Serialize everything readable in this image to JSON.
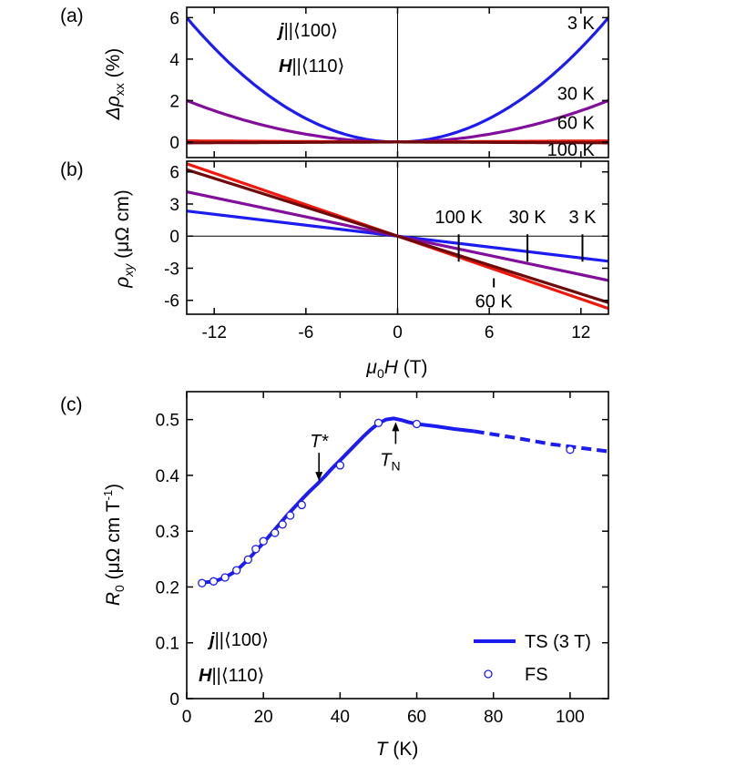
{
  "figure": {
    "panels": [
      {
        "id": "a",
        "label": "(a)"
      },
      {
        "id": "b",
        "label": "(b)"
      },
      {
        "id": "c",
        "label": "(c)"
      }
    ]
  },
  "annotations": {
    "a_j_symbol": "j",
    "a_j_rest": "||⟨100⟩",
    "a_h_symbol": "H",
    "a_h_rest": "||⟨110⟩",
    "c_j_symbol": "j",
    "c_j_rest": "||⟨100⟩",
    "c_h_symbol": "H",
    "c_h_rest": "||⟨110⟩",
    "t_star": "T*",
    "t_n_main": "T",
    "t_n_sub": "N"
  },
  "chart_data": [
    {
      "id": "a",
      "type": "line",
      "xlabel": "",
      "ylabel_main": "Δρ",
      "ylabel_sub": "xx",
      "ylabel_unit": " (%)",
      "xlim": [
        -13.8,
        13.8
      ],
      "ylim": [
        -0.75,
        6.5
      ],
      "xticks": [
        -12,
        -6,
        0,
        6,
        12
      ],
      "yticks": [
        0,
        2,
        4,
        6
      ],
      "ytick_labels": [
        "0",
        "2",
        "4",
        "6"
      ],
      "series": [
        {
          "name": "3 K",
          "color": "#1c1cf0",
          "model": "quadratic",
          "coef": 0.0315
        },
        {
          "name": "30 K",
          "color": "#820e9c",
          "model": "quadratic",
          "coef": 0.0105
        },
        {
          "name": "60 K",
          "color": "#e3170c",
          "model": "linear_abs",
          "coef": 0.004
        },
        {
          "name": "100 K",
          "color": "#6e0a0a",
          "model": "linear_abs",
          "coef": -0.003
        }
      ],
      "series_labels": [
        {
          "text": "3 K",
          "x": 12.9,
          "y": 5.75
        },
        {
          "text": "30 K",
          "x": 12.9,
          "y": 2.35
        },
        {
          "text": "60 K",
          "x": 12.9,
          "y": 0.95
        },
        {
          "text": "100 K",
          "x": 12.9,
          "y": -0.35
        }
      ]
    },
    {
      "id": "b",
      "type": "line",
      "xlabel_main": "μ",
      "xlabel_sub": "0",
      "xlabel_rest": "H",
      "xlabel_unit": " (T)",
      "ylabel_main": "ρ",
      "ylabel_sub": "xy",
      "ylabel_unit": " (μΩ cm)",
      "xlim": [
        -13.8,
        13.8
      ],
      "ylim": [
        -7.3,
        7.0
      ],
      "xticks": [
        -12,
        -6,
        0,
        6,
        12
      ],
      "xtick_labels": [
        "-12",
        "-6",
        "0",
        "6",
        "12"
      ],
      "yticks": [
        -6,
        -3,
        0,
        3,
        6
      ],
      "ytick_labels": [
        "-6",
        "-3",
        "0",
        "3",
        "6"
      ],
      "series": [
        {
          "name": "3 K",
          "color": "#1c1cf0",
          "slope": -0.17
        },
        {
          "name": "30 K",
          "color": "#820e9c",
          "slope": -0.3
        },
        {
          "name": "60 K",
          "color": "#f0180c",
          "slope": -0.49
        },
        {
          "name": "100 K",
          "color": "#6e0a0a",
          "slope": -0.45
        }
      ],
      "series_labels": [
        {
          "text": "100 K",
          "x": 4,
          "y": 1.2,
          "marker_x": 4
        },
        {
          "text": "30 K",
          "x": 8.5,
          "y": 1.2,
          "marker_x": 8.5
        },
        {
          "text": "3 K",
          "x": 12.1,
          "y": 1.2,
          "marker_x": 12.1
        },
        {
          "text": "60 K",
          "x": 6.3,
          "y": -5.3,
          "marker_x": 6.3
        }
      ]
    },
    {
      "id": "c",
      "type": "line",
      "xlabel_main": "T",
      "xlabel_unit": " (K)",
      "ylabel_main": "R",
      "ylabel_sub": "0",
      "ylabel_unit": " (μΩ cm T",
      "ylabel_sup": "-1",
      "ylabel_close": ")",
      "xlim": [
        0,
        110
      ],
      "ylim": [
        0,
        0.55
      ],
      "xticks": [
        0,
        20,
        40,
        60,
        80,
        100
      ],
      "xtick_labels": [
        "0",
        "20",
        "40",
        "60",
        "80",
        "100"
      ],
      "yticks": [
        0,
        0.1,
        0.2,
        0.3,
        0.4,
        0.5
      ],
      "ytick_labels": [
        "0",
        "0.1",
        "0.2",
        "0.3",
        "0.4",
        "0.5"
      ],
      "series": [
        {
          "name": "TS (3 T)",
          "color": "#1c1cf0",
          "x": [
            4,
            6,
            8,
            10,
            12,
            14,
            16,
            18,
            20,
            22,
            24,
            26,
            28,
            30,
            32,
            34,
            36,
            38,
            40,
            42,
            44,
            46,
            48,
            50,
            52,
            54,
            56,
            58,
            60,
            65,
            70,
            75
          ],
          "y": [
            0.208,
            0.209,
            0.212,
            0.217,
            0.225,
            0.236,
            0.249,
            0.264,
            0.279,
            0.295,
            0.311,
            0.327,
            0.342,
            0.357,
            0.371,
            0.384,
            0.398,
            0.413,
            0.427,
            0.441,
            0.455,
            0.469,
            0.482,
            0.493,
            0.5,
            0.502,
            0.499,
            0.495,
            0.492,
            0.488,
            0.483,
            0.479
          ]
        },
        {
          "name": "TS (3 T) dashed extrapolation",
          "color": "#1c1cf0",
          "x": [
            75,
            85,
            95,
            110
          ],
          "y": [
            0.479,
            0.468,
            0.456,
            0.443
          ]
        },
        {
          "name": "FS",
          "color": "#1c1cf0",
          "x": [
            4,
            7,
            10,
            13,
            16,
            18,
            20,
            23,
            25,
            27,
            30,
            40,
            50,
            60,
            100
          ],
          "y": [
            0.207,
            0.21,
            0.217,
            0.23,
            0.249,
            0.268,
            0.282,
            0.297,
            0.312,
            0.328,
            0.347,
            0.418,
            0.494,
            0.492,
            0.446
          ]
        }
      ],
      "legend": {
        "location": "bottom-right",
        "entries": [
          {
            "label": "TS (3 T)",
            "style": "line"
          },
          {
            "label": "FS",
            "style": "open-circle"
          }
        ]
      },
      "markers": [
        {
          "text": "T*",
          "x": 34.5,
          "y": 0.38,
          "direction": "down"
        },
        {
          "text": "T_N",
          "x": 54.5,
          "y": 0.502,
          "direction": "up"
        }
      ]
    }
  ]
}
